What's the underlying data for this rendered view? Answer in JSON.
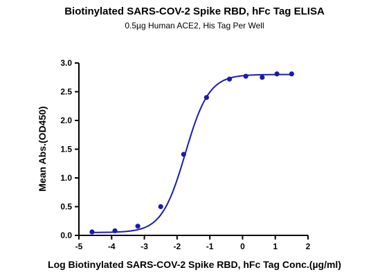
{
  "chart_data": {
    "type": "scatter",
    "title": "Biotinylated SARS-COV-2 Spike RBD, hFc Tag ELISA",
    "subtitle": "0.5µg Human ACE2, His Tag Per Well",
    "xlabel": "Log Biotinylated SARS-COV-2 Spike RBD, hFc Tag Conc.(µg/ml)",
    "ylabel": "Mean Abs.(OD450)",
    "xlim": [
      -5,
      2
    ],
    "ylim": [
      0,
      3.0
    ],
    "xticks": [
      "-5",
      "-4",
      "-3",
      "-2",
      "-1",
      "0",
      "1",
      "2"
    ],
    "yticks": [
      "0.0",
      "0.5",
      "1.0",
      "1.5",
      "2.0",
      "2.5",
      "3.0"
    ],
    "grid": false,
    "color": "#1a1ab0",
    "points": {
      "x": [
        -4.6,
        -3.9,
        -3.2,
        -2.5,
        -1.8,
        -1.1,
        -0.4,
        0.1,
        0.6,
        1.05,
        1.5
      ],
      "y": [
        0.06,
        0.08,
        0.16,
        0.5,
        1.41,
        2.4,
        2.72,
        2.77,
        2.75,
        2.81,
        2.81
      ]
    },
    "fit": {
      "type": "4PL",
      "bottom": 0.05,
      "top": 2.8,
      "log_ec50": -1.75,
      "hill": 1.2
    }
  }
}
